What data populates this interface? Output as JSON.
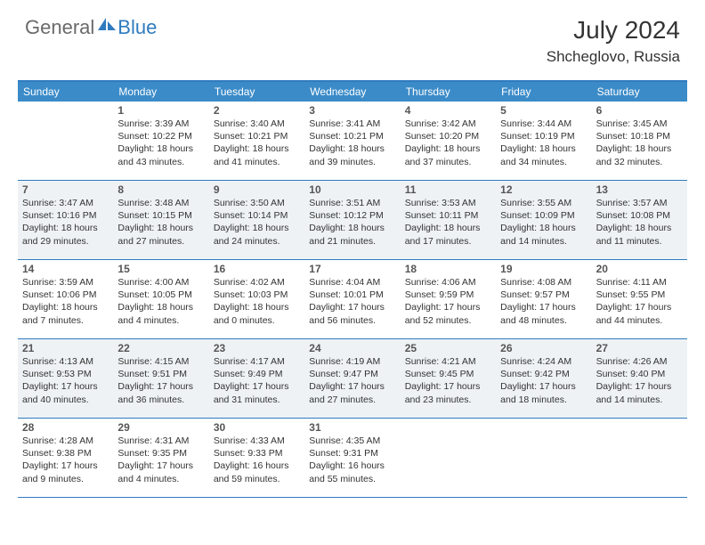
{
  "logo": {
    "general": "General",
    "blue": "Blue"
  },
  "title": {
    "monthYear": "July 2024",
    "location": "Shcheglovo, Russia"
  },
  "colors": {
    "headerBlue": "#3b8bc8",
    "borderBlue": "#2f7bbf",
    "shade": "#eef2f5",
    "text": "#333333",
    "logoGray": "#6a6a6a",
    "logoBlue": "#2f7bbf"
  },
  "weekdays": [
    "Sunday",
    "Monday",
    "Tuesday",
    "Wednesday",
    "Thursday",
    "Friday",
    "Saturday"
  ],
  "weeks": [
    [
      {
        "num": "",
        "sunrise": "",
        "sunset": "",
        "daylight": ""
      },
      {
        "num": "1",
        "sunrise": "Sunrise: 3:39 AM",
        "sunset": "Sunset: 10:22 PM",
        "daylight": "Daylight: 18 hours and 43 minutes."
      },
      {
        "num": "2",
        "sunrise": "Sunrise: 3:40 AM",
        "sunset": "Sunset: 10:21 PM",
        "daylight": "Daylight: 18 hours and 41 minutes."
      },
      {
        "num": "3",
        "sunrise": "Sunrise: 3:41 AM",
        "sunset": "Sunset: 10:21 PM",
        "daylight": "Daylight: 18 hours and 39 minutes."
      },
      {
        "num": "4",
        "sunrise": "Sunrise: 3:42 AM",
        "sunset": "Sunset: 10:20 PM",
        "daylight": "Daylight: 18 hours and 37 minutes."
      },
      {
        "num": "5",
        "sunrise": "Sunrise: 3:44 AM",
        "sunset": "Sunset: 10:19 PM",
        "daylight": "Daylight: 18 hours and 34 minutes."
      },
      {
        "num": "6",
        "sunrise": "Sunrise: 3:45 AM",
        "sunset": "Sunset: 10:18 PM",
        "daylight": "Daylight: 18 hours and 32 minutes."
      }
    ],
    [
      {
        "num": "7",
        "sunrise": "Sunrise: 3:47 AM",
        "sunset": "Sunset: 10:16 PM",
        "daylight": "Daylight: 18 hours and 29 minutes."
      },
      {
        "num": "8",
        "sunrise": "Sunrise: 3:48 AM",
        "sunset": "Sunset: 10:15 PM",
        "daylight": "Daylight: 18 hours and 27 minutes."
      },
      {
        "num": "9",
        "sunrise": "Sunrise: 3:50 AM",
        "sunset": "Sunset: 10:14 PM",
        "daylight": "Daylight: 18 hours and 24 minutes."
      },
      {
        "num": "10",
        "sunrise": "Sunrise: 3:51 AM",
        "sunset": "Sunset: 10:12 PM",
        "daylight": "Daylight: 18 hours and 21 minutes."
      },
      {
        "num": "11",
        "sunrise": "Sunrise: 3:53 AM",
        "sunset": "Sunset: 10:11 PM",
        "daylight": "Daylight: 18 hours and 17 minutes."
      },
      {
        "num": "12",
        "sunrise": "Sunrise: 3:55 AM",
        "sunset": "Sunset: 10:09 PM",
        "daylight": "Daylight: 18 hours and 14 minutes."
      },
      {
        "num": "13",
        "sunrise": "Sunrise: 3:57 AM",
        "sunset": "Sunset: 10:08 PM",
        "daylight": "Daylight: 18 hours and 11 minutes."
      }
    ],
    [
      {
        "num": "14",
        "sunrise": "Sunrise: 3:59 AM",
        "sunset": "Sunset: 10:06 PM",
        "daylight": "Daylight: 18 hours and 7 minutes."
      },
      {
        "num": "15",
        "sunrise": "Sunrise: 4:00 AM",
        "sunset": "Sunset: 10:05 PM",
        "daylight": "Daylight: 18 hours and 4 minutes."
      },
      {
        "num": "16",
        "sunrise": "Sunrise: 4:02 AM",
        "sunset": "Sunset: 10:03 PM",
        "daylight": "Daylight: 18 hours and 0 minutes."
      },
      {
        "num": "17",
        "sunrise": "Sunrise: 4:04 AM",
        "sunset": "Sunset: 10:01 PM",
        "daylight": "Daylight: 17 hours and 56 minutes."
      },
      {
        "num": "18",
        "sunrise": "Sunrise: 4:06 AM",
        "sunset": "Sunset: 9:59 PM",
        "daylight": "Daylight: 17 hours and 52 minutes."
      },
      {
        "num": "19",
        "sunrise": "Sunrise: 4:08 AM",
        "sunset": "Sunset: 9:57 PM",
        "daylight": "Daylight: 17 hours and 48 minutes."
      },
      {
        "num": "20",
        "sunrise": "Sunrise: 4:11 AM",
        "sunset": "Sunset: 9:55 PM",
        "daylight": "Daylight: 17 hours and 44 minutes."
      }
    ],
    [
      {
        "num": "21",
        "sunrise": "Sunrise: 4:13 AM",
        "sunset": "Sunset: 9:53 PM",
        "daylight": "Daylight: 17 hours and 40 minutes."
      },
      {
        "num": "22",
        "sunrise": "Sunrise: 4:15 AM",
        "sunset": "Sunset: 9:51 PM",
        "daylight": "Daylight: 17 hours and 36 minutes."
      },
      {
        "num": "23",
        "sunrise": "Sunrise: 4:17 AM",
        "sunset": "Sunset: 9:49 PM",
        "daylight": "Daylight: 17 hours and 31 minutes."
      },
      {
        "num": "24",
        "sunrise": "Sunrise: 4:19 AM",
        "sunset": "Sunset: 9:47 PM",
        "daylight": "Daylight: 17 hours and 27 minutes."
      },
      {
        "num": "25",
        "sunrise": "Sunrise: 4:21 AM",
        "sunset": "Sunset: 9:45 PM",
        "daylight": "Daylight: 17 hours and 23 minutes."
      },
      {
        "num": "26",
        "sunrise": "Sunrise: 4:24 AM",
        "sunset": "Sunset: 9:42 PM",
        "daylight": "Daylight: 17 hours and 18 minutes."
      },
      {
        "num": "27",
        "sunrise": "Sunrise: 4:26 AM",
        "sunset": "Sunset: 9:40 PM",
        "daylight": "Daylight: 17 hours and 14 minutes."
      }
    ],
    [
      {
        "num": "28",
        "sunrise": "Sunrise: 4:28 AM",
        "sunset": "Sunset: 9:38 PM",
        "daylight": "Daylight: 17 hours and 9 minutes."
      },
      {
        "num": "29",
        "sunrise": "Sunrise: 4:31 AM",
        "sunset": "Sunset: 9:35 PM",
        "daylight": "Daylight: 17 hours and 4 minutes."
      },
      {
        "num": "30",
        "sunrise": "Sunrise: 4:33 AM",
        "sunset": "Sunset: 9:33 PM",
        "daylight": "Daylight: 16 hours and 59 minutes."
      },
      {
        "num": "31",
        "sunrise": "Sunrise: 4:35 AM",
        "sunset": "Sunset: 9:31 PM",
        "daylight": "Daylight: 16 hours and 55 minutes."
      },
      {
        "num": "",
        "sunrise": "",
        "sunset": "",
        "daylight": ""
      },
      {
        "num": "",
        "sunrise": "",
        "sunset": "",
        "daylight": ""
      },
      {
        "num": "",
        "sunrise": "",
        "sunset": "",
        "daylight": ""
      }
    ]
  ]
}
